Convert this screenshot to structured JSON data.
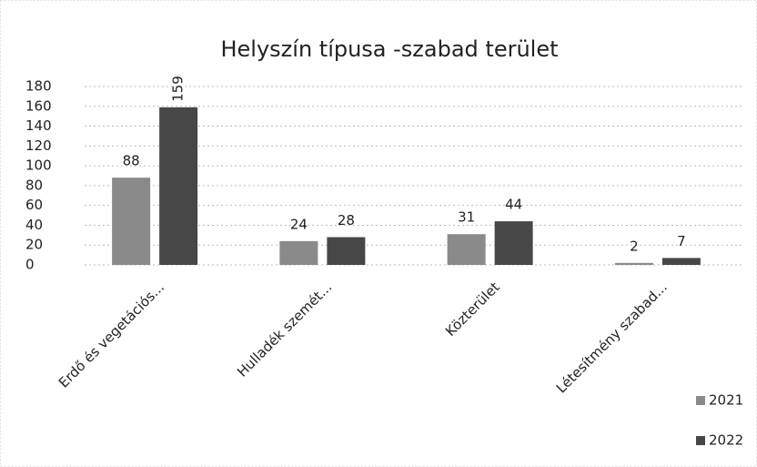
{
  "chart_data": {
    "type": "bar",
    "title": "Helyszín típusa -szabad terület",
    "categories": [
      "Erdő és vegetációs...",
      "Hulladék szemét...",
      "Közterület",
      "Létesítmény szabad..."
    ],
    "series": [
      {
        "name": "2021",
        "color": "#8a8a8a",
        "values": [
          88,
          24,
          31,
          2
        ]
      },
      {
        "name": "2022",
        "color": "#474747",
        "values": [
          159,
          28,
          44,
          7
        ]
      }
    ],
    "ylim": [
      0,
      180
    ],
    "yticks": [
      0,
      20,
      40,
      60,
      80,
      100,
      120,
      140,
      160,
      180
    ],
    "grid": true,
    "legend": "bottom-right"
  }
}
